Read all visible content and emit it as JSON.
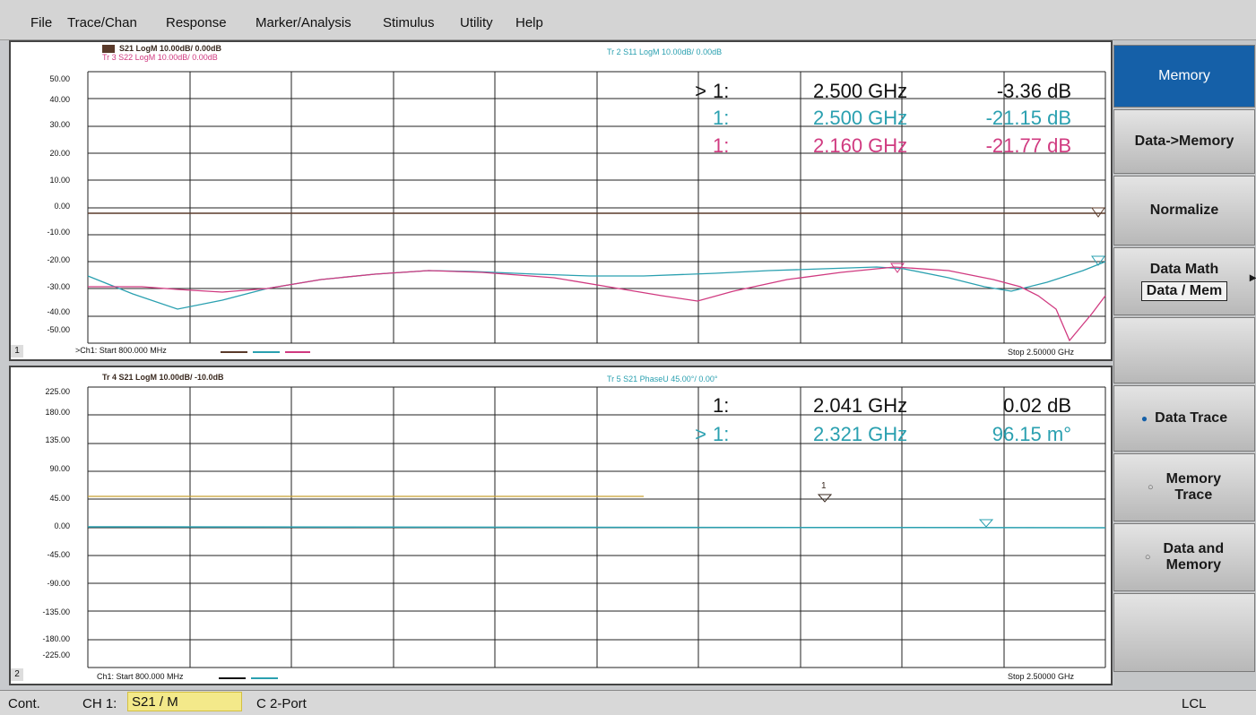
{
  "menu": [
    "File",
    "Trace/Chan",
    "Response",
    "Marker/Analysis",
    "Stimulus",
    "Utility",
    "Help"
  ],
  "colors": {
    "dark": "#5a3a2a",
    "teal": "#2aa0b0",
    "magenta": "#d03a80",
    "gold": "#c8a030",
    "active_softkey": "#1560a8"
  },
  "window1": {
    "number": "1",
    "trace_header_s21": "S21 LogM 10.00dB/ 0.00dB",
    "trace_header_s22": "Tr 3  S22 LogM 10.00dB/  0.00dB",
    "trace_header_s11": "Tr 2  S11 LogM 10.00dB/  0.00dB",
    "y_ticks": [
      "50.00",
      "40.00",
      "30.00",
      "20.00",
      "10.00",
      "0.00",
      "-10.00",
      "-20.00",
      "-30.00",
      "-40.00",
      "-50.00"
    ],
    "footer_start": ">Ch1: Start  800.000 MHz",
    "footer_stop": "Stop  2.50000 GHz",
    "markers": [
      {
        "active": ">",
        "id": "1:",
        "freq": "2.500 GHz",
        "value": "-3.36 dB"
      },
      {
        "active": "",
        "id": "1:",
        "freq": "2.500 GHz",
        "value": "-21.15 dB"
      },
      {
        "active": "",
        "id": "1:",
        "freq": "2.160 GHz",
        "value": "-21.77 dB"
      }
    ]
  },
  "window2": {
    "number": "2",
    "trace_header_tr4": "Tr 4  S21 LogM 10.00dB/  -10.0dB",
    "trace_header_tr5": "Tr 5  S21 PhaseU 45.00°/  0.00°",
    "y_ticks": [
      "225.00",
      "180.00",
      "135.00",
      "90.00",
      "45.00",
      "0.00",
      "-45.00",
      "-90.00",
      "-135.00",
      "-180.00",
      "-225.00"
    ],
    "footer_start": "Ch1: Start  800.000 MHz",
    "footer_stop": "Stop  2.50000 GHz",
    "markers": [
      {
        "active": "",
        "id": "1:",
        "freq": "2.041 GHz",
        "value": "0.02 dB"
      },
      {
        "active": ">",
        "id": "1:",
        "freq": "2.321 GHz",
        "value": "96.15 m°"
      }
    ],
    "trace_marker_label": "1"
  },
  "softkeys": {
    "memory": "Memory",
    "data_to_memory": "Data->Memory",
    "normalize": "Normalize",
    "data_math": "Data Math",
    "data_math_value": "Data / Mem",
    "data_trace": "Data Trace",
    "memory_trace_1": "Memory",
    "memory_trace_2": "Trace",
    "data_and_memory_1": "Data and",
    "data_and_memory_2": "Memory"
  },
  "status": {
    "mode": "Cont.",
    "channel_label": "CH 1:",
    "measurement": "S21 / M",
    "cal": "C  2-Port",
    "remote": "LCL"
  }
}
